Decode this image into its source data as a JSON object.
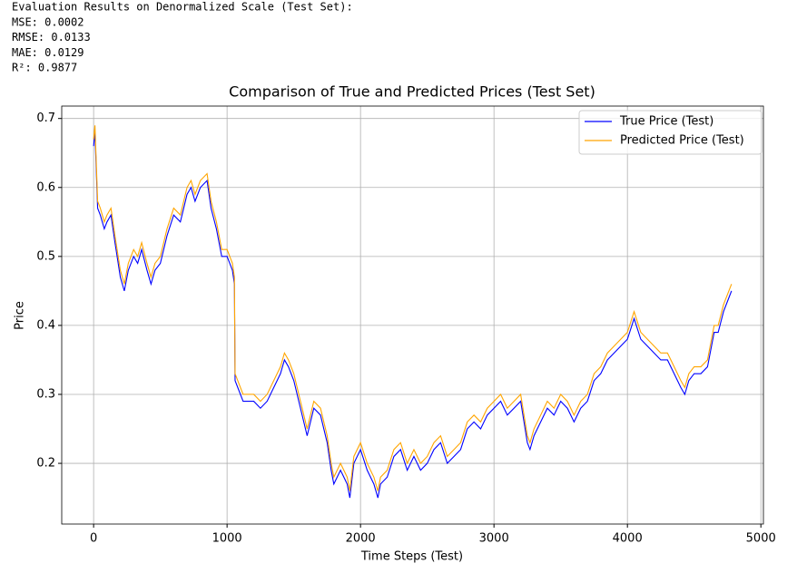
{
  "output_lines": [
    "Evaluation Results on Denormalized Scale (Test Set):",
    "MSE: 0.0002",
    "RMSE: 0.0133",
    "MAE: 0.0129",
    "R²: 0.9877"
  ],
  "chart_data": {
    "type": "line",
    "title": "Comparison of True and Predicted Prices (Test Set)",
    "x_label": "Time Steps (Test)",
    "y_label": "Price",
    "x": [
      0,
      10,
      30,
      50,
      80,
      100,
      130,
      160,
      200,
      230,
      260,
      300,
      330,
      360,
      400,
      430,
      460,
      500,
      550,
      600,
      650,
      700,
      730,
      760,
      800,
      850,
      880,
      920,
      960,
      1000,
      1040,
      1055,
      1060,
      1080,
      1120,
      1160,
      1200,
      1250,
      1300,
      1350,
      1400,
      1430,
      1460,
      1500,
      1550,
      1600,
      1650,
      1700,
      1750,
      1780,
      1800,
      1850,
      1900,
      1920,
      1950,
      2000,
      2050,
      2100,
      2130,
      2150,
      2200,
      2250,
      2300,
      2350,
      2400,
      2450,
      2500,
      2550,
      2600,
      2650,
      2700,
      2750,
      2800,
      2850,
      2900,
      2950,
      3000,
      3050,
      3100,
      3150,
      3200,
      3250,
      3270,
      3300,
      3350,
      3400,
      3450,
      3500,
      3550,
      3600,
      3650,
      3700,
      3750,
      3800,
      3850,
      3900,
      3950,
      4000,
      4050,
      4100,
      4150,
      4200,
      4250,
      4300,
      4350,
      4400,
      4430,
      4460,
      4500,
      4550,
      4600,
      4650,
      4680,
      4720,
      4780
    ],
    "series": [
      {
        "name": "True Price (Test)",
        "color": "#0000ff",
        "values": [
          0.66,
          0.68,
          0.57,
          0.56,
          0.54,
          0.55,
          0.56,
          0.52,
          0.47,
          0.45,
          0.48,
          0.5,
          0.49,
          0.51,
          0.48,
          0.46,
          0.48,
          0.49,
          0.53,
          0.56,
          0.55,
          0.59,
          0.6,
          0.58,
          0.6,
          0.61,
          0.57,
          0.54,
          0.5,
          0.5,
          0.48,
          0.46,
          0.32,
          0.31,
          0.29,
          0.29,
          0.29,
          0.28,
          0.29,
          0.31,
          0.33,
          0.35,
          0.34,
          0.32,
          0.28,
          0.24,
          0.28,
          0.27,
          0.23,
          0.19,
          0.17,
          0.19,
          0.17,
          0.15,
          0.2,
          0.22,
          0.19,
          0.17,
          0.15,
          0.17,
          0.18,
          0.21,
          0.22,
          0.19,
          0.21,
          0.19,
          0.2,
          0.22,
          0.23,
          0.2,
          0.21,
          0.22,
          0.25,
          0.26,
          0.25,
          0.27,
          0.28,
          0.29,
          0.27,
          0.28,
          0.29,
          0.23,
          0.22,
          0.24,
          0.26,
          0.28,
          0.27,
          0.29,
          0.28,
          0.26,
          0.28,
          0.29,
          0.32,
          0.33,
          0.35,
          0.36,
          0.37,
          0.38,
          0.41,
          0.38,
          0.37,
          0.36,
          0.35,
          0.35,
          0.33,
          0.31,
          0.3,
          0.32,
          0.33,
          0.33,
          0.34,
          0.39,
          0.39,
          0.42,
          0.45
        ]
      },
      {
        "name": "Predicted Price (Test)",
        "color": "#ffa500",
        "values": [
          0.67,
          0.69,
          0.58,
          0.57,
          0.55,
          0.56,
          0.57,
          0.53,
          0.48,
          0.46,
          0.49,
          0.51,
          0.5,
          0.52,
          0.49,
          0.47,
          0.49,
          0.5,
          0.54,
          0.57,
          0.56,
          0.6,
          0.61,
          0.59,
          0.61,
          0.62,
          0.58,
          0.55,
          0.51,
          0.51,
          0.49,
          0.47,
          0.33,
          0.32,
          0.3,
          0.3,
          0.3,
          0.29,
          0.3,
          0.32,
          0.34,
          0.36,
          0.35,
          0.33,
          0.29,
          0.25,
          0.29,
          0.28,
          0.24,
          0.2,
          0.18,
          0.2,
          0.18,
          0.16,
          0.21,
          0.23,
          0.2,
          0.18,
          0.16,
          0.18,
          0.19,
          0.22,
          0.23,
          0.2,
          0.22,
          0.2,
          0.21,
          0.23,
          0.24,
          0.21,
          0.22,
          0.23,
          0.26,
          0.27,
          0.26,
          0.28,
          0.29,
          0.3,
          0.28,
          0.29,
          0.3,
          0.24,
          0.23,
          0.25,
          0.27,
          0.29,
          0.28,
          0.3,
          0.29,
          0.27,
          0.29,
          0.3,
          0.33,
          0.34,
          0.36,
          0.37,
          0.38,
          0.39,
          0.42,
          0.39,
          0.38,
          0.37,
          0.36,
          0.36,
          0.34,
          0.32,
          0.31,
          0.33,
          0.34,
          0.34,
          0.35,
          0.4,
          0.4,
          0.43,
          0.46
        ]
      }
    ],
    "xlim": [
      -239,
      5019
    ],
    "ylim": [
      0.112,
      0.718
    ],
    "xticks": [
      0,
      1000,
      2000,
      3000,
      4000,
      5000
    ],
    "yticks": [
      0.2,
      0.3,
      0.4,
      0.5,
      0.6,
      0.7
    ],
    "grid": true,
    "legend": "upper right"
  }
}
